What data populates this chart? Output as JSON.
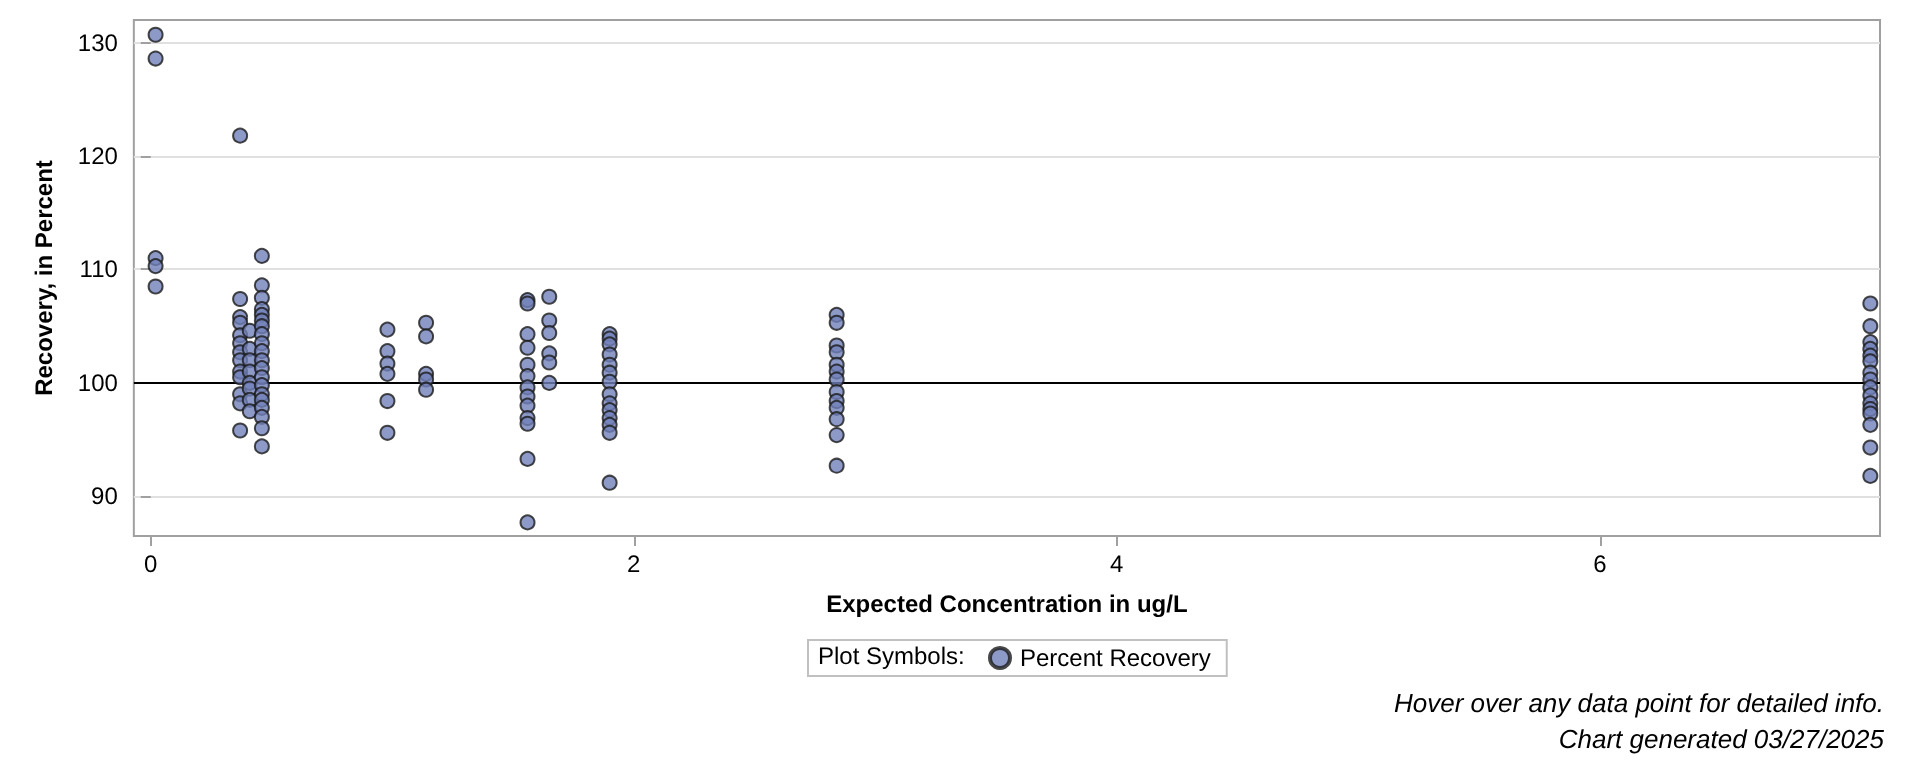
{
  "chart_data": {
    "type": "scatter",
    "xlabel": "Expected Concentration in ug/L",
    "ylabel": "Recovery, in Percent",
    "legend_title": "Plot Symbols:",
    "legend": "bottom",
    "grid": "y",
    "marker": "circle",
    "xlim": [
      -0.07,
      7.16
    ],
    "xticks": [
      0,
      2,
      4,
      6
    ],
    "ylim": [
      86.5,
      132
    ],
    "yticks": [
      90,
      100,
      110,
      120,
      130
    ],
    "ref_lines": [
      {
        "axis": "y",
        "value": 100,
        "label": null,
        "color": "#000000",
        "line_style": "solid"
      }
    ],
    "annotations": [
      "Hover over any data point for detailed info.",
      "Chart generated 03/27/2025"
    ],
    "series": [
      {
        "name": "Percent Recovery",
        "color": "#7080b8",
        "x": [
          0.02,
          0.02,
          0.02,
          0.02,
          0.02,
          0.37,
          0.37,
          0.37,
          0.37,
          0.37,
          0.37,
          0.37,
          0.37,
          0.37,
          0.37,
          0.37,
          0.37,
          0.37,
          0.41,
          0.41,
          0.41,
          0.41,
          0.41,
          0.41,
          0.41,
          0.41,
          0.46,
          0.46,
          0.46,
          0.46,
          0.46,
          0.46,
          0.46,
          0.46,
          0.46,
          0.46,
          0.46,
          0.46,
          0.46,
          0.46,
          0.46,
          0.46,
          0.46,
          0.46,
          0.46,
          0.46,
          0.98,
          0.98,
          0.98,
          0.98,
          0.98,
          0.98,
          1.14,
          1.14,
          1.14,
          1.14,
          1.14,
          1.56,
          1.56,
          1.56,
          1.56,
          1.56,
          1.56,
          1.56,
          1.56,
          1.56,
          1.56,
          1.56,
          1.56,
          1.56,
          1.65,
          1.65,
          1.65,
          1.65,
          1.65,
          1.65,
          1.9,
          1.9,
          1.9,
          1.9,
          1.9,
          1.9,
          1.9,
          1.9,
          1.9,
          1.9,
          1.9,
          1.9,
          1.9,
          1.9,
          2.84,
          2.84,
          2.84,
          2.84,
          2.84,
          2.84,
          2.84,
          2.84,
          2.84,
          2.84,
          2.84,
          2.84,
          2.84,
          7.12,
          7.12,
          7.12,
          7.12,
          7.12,
          7.12,
          7.12,
          7.12,
          7.12,
          7.12,
          7.12,
          7.12,
          7.12,
          7.12,
          7.12,
          7.12
        ],
        "values": [
          130.7,
          128.6,
          111,
          110.3,
          108.5,
          121.8,
          107.4,
          105.8,
          105.3,
          104.2,
          103.5,
          102.7,
          102,
          101,
          100.5,
          99,
          98.2,
          95.8,
          104.6,
          103,
          102,
          101,
          100,
          99.5,
          98.5,
          97.5,
          111.2,
          108.6,
          107.5,
          106.5,
          106,
          105.5,
          105,
          104.3,
          103.5,
          102.8,
          102,
          101.3,
          100.5,
          99.8,
          99,
          98.5,
          97.8,
          97,
          96,
          94.4,
          104.7,
          102.8,
          101.7,
          100.8,
          98.4,
          95.6,
          105.3,
          104.1,
          100.8,
          100.3,
          99.4,
          107.3,
          107,
          104.3,
          103.1,
          101.6,
          100.6,
          99.6,
          98.8,
          98,
          96.9,
          96.4,
          93.3,
          87.7,
          107.6,
          105.5,
          104.4,
          102.6,
          101.8,
          100,
          104.3,
          103.9,
          103.4,
          102.5,
          101.6,
          100.9,
          100.1,
          99,
          98.2,
          97.6,
          96.9,
          96.3,
          95.6,
          91.2,
          106,
          105.3,
          103.3,
          102.7,
          101.6,
          101,
          100.3,
          99.2,
          98.4,
          97.8,
          96.8,
          95.4,
          92.7,
          107,
          105,
          103.6,
          103,
          102.4,
          101.9,
          100.9,
          100.3,
          99.6,
          98.9,
          98.2,
          97.7,
          97.3,
          96.3,
          94.3,
          91.8
        ]
      }
    ]
  }
}
